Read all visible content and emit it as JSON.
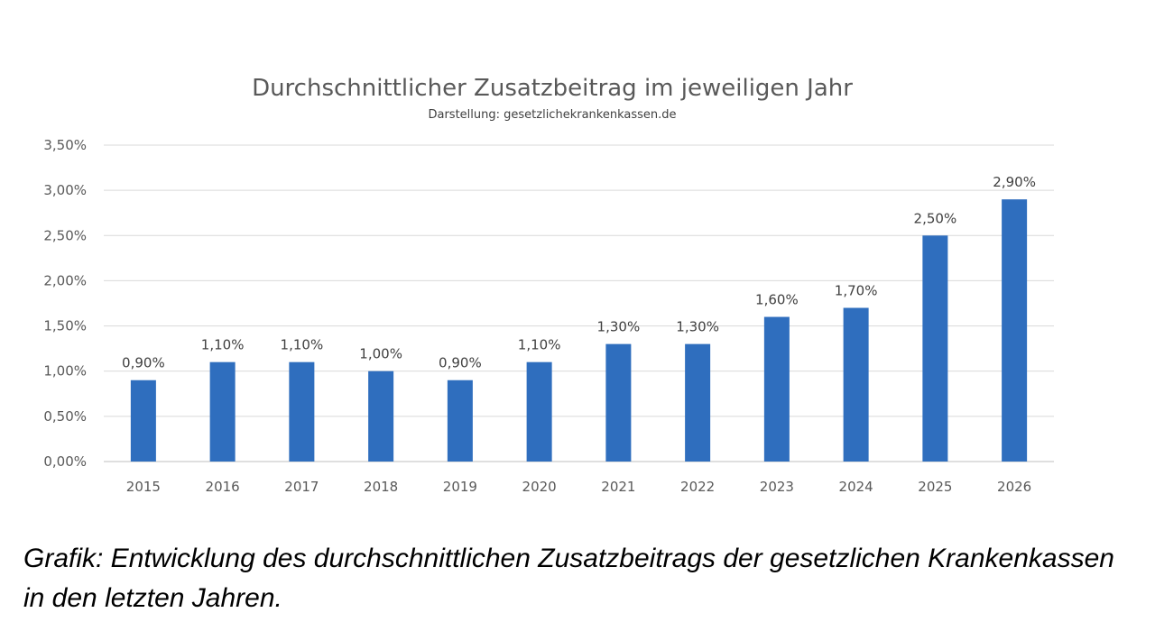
{
  "chart_data": {
    "type": "bar",
    "title": "Durchschnittlicher Zusatzbeitrag im jeweiligen Jahr",
    "subtitle": "Darstellung: gesetzlichekrankenkassen.de",
    "categories": [
      "2015",
      "2016",
      "2017",
      "2018",
      "2019",
      "2020",
      "2021",
      "2022",
      "2023",
      "2024",
      "2025",
      "2026"
    ],
    "values": [
      0.9,
      1.1,
      1.1,
      1.0,
      0.9,
      1.1,
      1.3,
      1.3,
      1.6,
      1.7,
      2.5,
      2.9
    ],
    "data_labels": [
      "0,90%",
      "1,10%",
      "1,10%",
      "1,00%",
      "0,90%",
      "1,10%",
      "1,30%",
      "1,30%",
      "1,60%",
      "1,70%",
      "2,50%",
      "2,90%"
    ],
    "y_ticks": [
      0,
      0.5,
      1.0,
      1.5,
      2.0,
      2.5,
      3.0,
      3.5
    ],
    "y_tick_labels": [
      "0,00%",
      "0,50%",
      "1,00%",
      "1,50%",
      "2,00%",
      "2,50%",
      "3,00%",
      "3,50%"
    ],
    "ylim": [
      0,
      3.5
    ],
    "xlabel": "",
    "ylabel": "",
    "grid": true,
    "legend": "none",
    "bar_color": "#2f6ebe"
  },
  "caption": "Grafik: Entwicklung des durchschnittlichen Zusatzbeitrags der gesetzlichen Krankenkassen in den letzten Jahren."
}
